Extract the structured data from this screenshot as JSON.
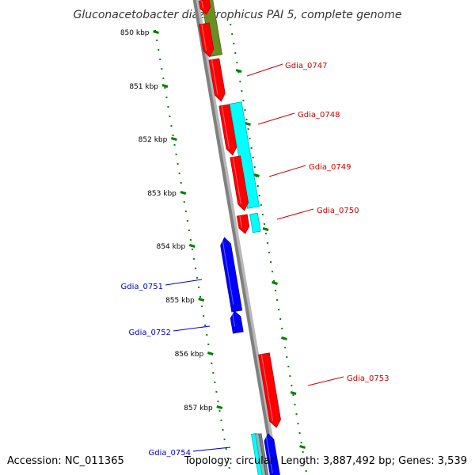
{
  "title": "Gluconacetobacter diazotrophicus PAI 5, complete genome",
  "accession_label": "Accession: NC_011365",
  "topology_label": "Topology: circular; Length: 3,887,492 bp; Genes: 3,539",
  "ticks": [
    {
      "label": "850 kbp",
      "kbp": 850
    },
    {
      "label": "851 kbp",
      "kbp": 851
    },
    {
      "label": "852 kbp",
      "kbp": 852
    },
    {
      "label": "853 kbp",
      "kbp": 853
    },
    {
      "label": "854 kbp",
      "kbp": 854
    },
    {
      "label": "855 kbp",
      "kbp": 855
    },
    {
      "label": "856 kbp",
      "kbp": 856
    },
    {
      "label": "857 kbp",
      "kbp": 857
    }
  ],
  "genes": [
    {
      "name": "Gdia_0747",
      "side": "right"
    },
    {
      "name": "Gdia_0748",
      "side": "right"
    },
    {
      "name": "Gdia_0749",
      "side": "right"
    },
    {
      "name": "Gdia_0750",
      "side": "right"
    },
    {
      "name": "Gdia_0751",
      "side": "left"
    },
    {
      "name": "Gdia_0752",
      "side": "left"
    },
    {
      "name": "Gdia_0753",
      "side": "right"
    },
    {
      "name": "Gdia_0754",
      "side": "left"
    }
  ],
  "colors": {
    "forward_cds": "#ff0000",
    "reverse_cds": "#0000ff",
    "rna": "#00ffff",
    "other": "#6b8e23",
    "backbone": "#808080",
    "tick_marks": "#008000",
    "label_forward": "#cc0000",
    "label_reverse": "#0000cc"
  }
}
